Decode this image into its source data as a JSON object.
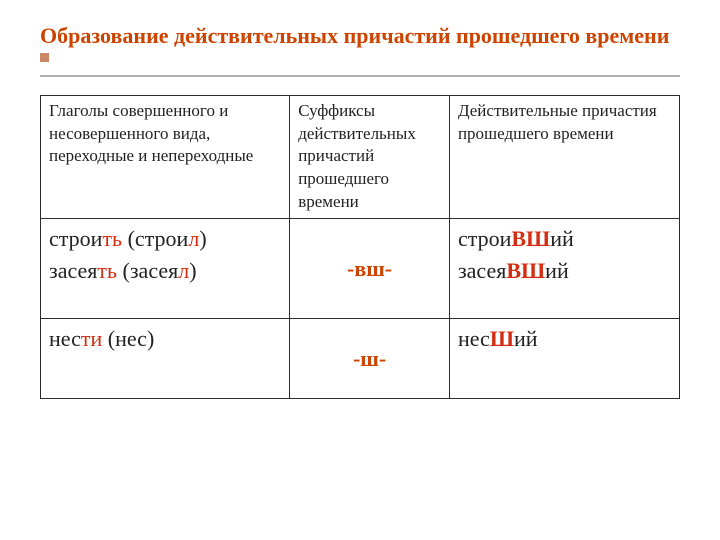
{
  "title": "Образование действительных причастий прошедшего времени",
  "colors": {
    "title": "#cc4400",
    "suffix": "#cc4400",
    "highlight": "#d42e12",
    "border": "#2b2b2b",
    "rule": "#b0b0b0",
    "bullet": "#cc8866",
    "text": "#222222",
    "background": "#ffffff"
  },
  "fontsizes": {
    "title": 22,
    "header": 17,
    "body": 22
  },
  "table": {
    "col_widths_pct": [
      39,
      25,
      36
    ],
    "columns": [
      "Глаголы совершенного и несовершенного вида, переходные и непереходные",
      "Суффиксы действительных причастий прошедшего времени",
      "Действительные причастия прошедшего времени"
    ],
    "rows": [
      {
        "verbs": [
          {
            "stem": "строи",
            "end": "ть",
            "pstem": "строи",
            "pend": "л"
          },
          {
            "stem": "засея",
            "end": "ть",
            "pstem": "засея",
            "pend": "л"
          }
        ],
        "suffix": "-вш-",
        "participles": [
          {
            "pre": "строи",
            "hi": "ВШ",
            "post": "ий"
          },
          {
            "pre": "засея",
            "hi": "ВШ",
            "post": "ий"
          }
        ]
      },
      {
        "verbs": [
          {
            "stem": "нес",
            "end": "ти",
            "pstem": "нес",
            "pend": ""
          }
        ],
        "suffix": "-ш-",
        "participles": [
          {
            "pre": "нес",
            "hi": "Ш",
            "post": "ий"
          }
        ]
      }
    ]
  }
}
